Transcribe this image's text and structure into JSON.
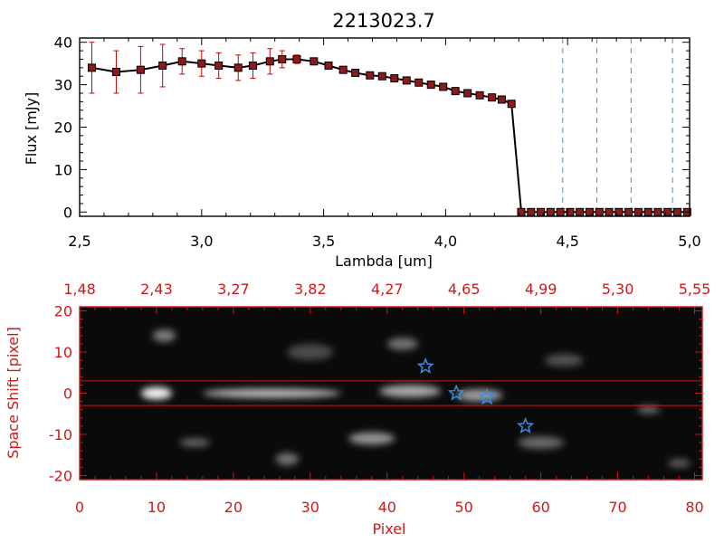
{
  "chart_data": [
    {
      "type": "line",
      "title": "2213023.7",
      "xlabel": "Lambda [um]",
      "ylabel": "Flux [mJy]",
      "xlim": [
        2.5,
        5.0
      ],
      "ylim": [
        -1,
        41
      ],
      "x_ticks": [
        "2.5",
        "3.0",
        "3.5",
        "4.0",
        "4.5",
        "5.0"
      ],
      "y_ticks": [
        "0",
        "10",
        "20",
        "30",
        "40"
      ],
      "grid": false,
      "colors": {
        "line": "#000000",
        "marker": "#8b1a1a",
        "error_bar": "#cc0000",
        "dashed_lines": "#2a9fd6"
      },
      "series": [
        {
          "x": [
            2.55,
            2.65,
            2.75,
            2.84,
            2.92,
            3.0,
            3.07,
            3.15,
            3.21,
            3.28,
            3.33,
            3.39,
            3.46,
            3.52,
            3.58,
            3.63,
            3.69,
            3.74,
            3.79,
            3.84,
            3.89,
            3.94,
            3.99,
            4.04,
            4.09,
            4.14,
            4.19,
            4.23,
            4.27,
            4.31,
            4.35,
            4.39,
            4.43,
            4.47,
            4.51,
            4.55,
            4.59,
            4.63,
            4.67,
            4.71,
            4.75,
            4.79,
            4.83,
            4.87,
            4.91,
            4.95,
            4.99
          ],
          "y": [
            34,
            33,
            33.5,
            34.5,
            35.5,
            35,
            34.5,
            34,
            34.5,
            35.5,
            36,
            36,
            35.5,
            34.5,
            33.5,
            32.8,
            32.2,
            32,
            31.5,
            31,
            30.5,
            30,
            29.5,
            28.5,
            28,
            27.5,
            27,
            26.5,
            25.5,
            0,
            0,
            0,
            0,
            0,
            0,
            0,
            0,
            0,
            0,
            0,
            0,
            0,
            0,
            0,
            0,
            0,
            0
          ],
          "error": [
            6,
            5,
            5.5,
            5,
            3,
            3,
            3,
            3,
            3,
            3,
            2,
            1,
            0,
            0,
            0,
            0,
            0,
            0,
            0,
            0,
            0,
            0,
            0,
            0,
            0,
            0,
            0,
            0,
            0,
            0,
            0,
            0,
            0,
            0,
            0,
            0,
            0,
            0,
            0,
            0,
            0,
            0,
            0,
            0,
            0,
            0,
            0
          ]
        }
      ],
      "vertical_dashed_lines_x": [
        4.48,
        4.62,
        4.76,
        4.93
      ]
    },
    {
      "type": "heatmap",
      "xlabel": "Pixel",
      "ylabel": "Space Shift [pixel]",
      "xlim": [
        0,
        81
      ],
      "ylim": [
        -21,
        21
      ],
      "x_ticks": [
        "0",
        "10",
        "20",
        "30",
        "40",
        "50",
        "60",
        "70",
        "80"
      ],
      "y_ticks": [
        "-20",
        "-10",
        "0",
        "10",
        "20"
      ],
      "top_axis_ticks": [
        "1.48",
        "2.43",
        "3.27",
        "3.82",
        "4.27",
        "4.65",
        "4.99",
        "5.30",
        "5.55"
      ],
      "colors": {
        "axes": "#d01818",
        "star_markers": "#3a8ee6"
      },
      "horizontal_lines_y": [
        3,
        -3
      ],
      "star_markers": [
        {
          "x": 45,
          "y": 6.5
        },
        {
          "x": 49,
          "y": 0
        },
        {
          "x": 53,
          "y": -1
        },
        {
          "x": 58,
          "y": -8
        }
      ],
      "bright_blobs": [
        {
          "x": 10,
          "y": 0,
          "width": 4,
          "height": 3,
          "intensity": 0.95
        },
        {
          "x": 25,
          "y": 0,
          "width": 18,
          "height": 2.2,
          "intensity": 0.7
        },
        {
          "x": 43,
          "y": 0.5,
          "width": 8,
          "height": 3,
          "intensity": 0.6
        },
        {
          "x": 52,
          "y": -0.5,
          "width": 6,
          "height": 3,
          "intensity": 0.55
        },
        {
          "x": 11,
          "y": 14,
          "width": 3,
          "height": 3,
          "intensity": 0.4
        },
        {
          "x": 42,
          "y": 12,
          "width": 4,
          "height": 3,
          "intensity": 0.35
        },
        {
          "x": 38,
          "y": -11,
          "width": 6,
          "height": 3,
          "intensity": 0.5
        },
        {
          "x": 27,
          "y": -16,
          "width": 3,
          "height": 3,
          "intensity": 0.35
        },
        {
          "x": 15,
          "y": -12,
          "width": 4,
          "height": 2,
          "intensity": 0.3
        },
        {
          "x": 60,
          "y": -12,
          "width": 6,
          "height": 3,
          "intensity": 0.3
        },
        {
          "x": 74,
          "y": -4,
          "width": 3,
          "height": 2,
          "intensity": 0.3
        },
        {
          "x": 78,
          "y": -17,
          "width": 3,
          "height": 2,
          "intensity": 0.25
        },
        {
          "x": 63,
          "y": 8,
          "width": 5,
          "height": 3,
          "intensity": 0.2
        },
        {
          "x": 30,
          "y": 10,
          "width": 6,
          "height": 4,
          "intensity": 0.15
        }
      ]
    }
  ]
}
